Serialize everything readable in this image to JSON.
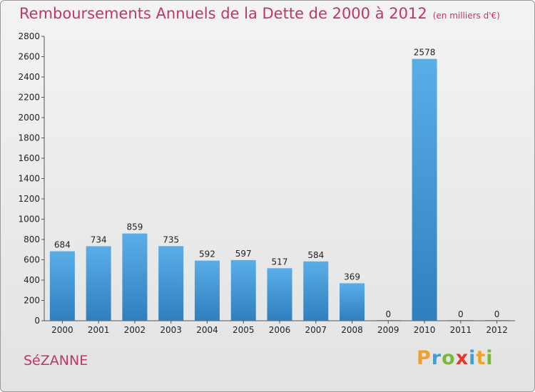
{
  "title": "Remboursements Annuels de la Dette de 2000 à 2012",
  "unit": "(en milliers d'€)",
  "city": "SéZANNE",
  "logo": [
    "P",
    "r",
    "o",
    "x",
    "i",
    "t",
    "i"
  ],
  "logo_colors": [
    "#f0a12a",
    "#3aa0d8",
    "#79b83a",
    "#e03a2f",
    "#3aa0d8",
    "#f0a12a",
    "#79b83a"
  ],
  "colors": {
    "bar_light": "#5aaee8",
    "bar_dark": "#2f7fbf",
    "title": "#c0356a"
  },
  "chart_data": {
    "type": "bar",
    "title": "Remboursements Annuels de la Dette de 2000 à 2012",
    "xlabel": "",
    "ylabel": "",
    "categories": [
      "2000",
      "2001",
      "2002",
      "2003",
      "2004",
      "2005",
      "2006",
      "2007",
      "2008",
      "2009",
      "2010",
      "2011",
      "2012"
    ],
    "values": [
      684,
      734,
      859,
      735,
      592,
      597,
      517,
      584,
      369,
      0,
      2578,
      0,
      0
    ],
    "ylim": [
      0,
      2800
    ],
    "yticks": [
      0,
      200,
      400,
      600,
      800,
      1000,
      1200,
      1400,
      1600,
      1800,
      2000,
      2200,
      2400,
      2600,
      2800
    ],
    "grid": false
  }
}
